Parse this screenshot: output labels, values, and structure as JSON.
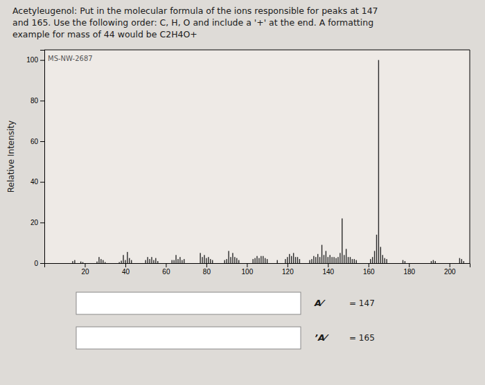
{
  "chart_data": {
    "type": "bar",
    "title": "Acetyleugenol: Put in the molecular formula of the ions responsible for peaks at 147\nand 165. Use the following order: C, H, O and include a '+' at the end. A formatting\nexample for mass of 44 would be C2H4O+",
    "y_label": "Relative Intensity",
    "annotations": [
      "MS-NW-2687"
    ],
    "answer_fields": [
      {
        "symbol": "A⁄",
        "label": "= 147"
      },
      {
        "symbol": "ʼA⁄",
        "label": "= 165"
      }
    ],
    "x": [
      14,
      15,
      18,
      19,
      26,
      27,
      28,
      29,
      30,
      37,
      38,
      39,
      40,
      41,
      42,
      43,
      50,
      51,
      52,
      53,
      54,
      55,
      56,
      63,
      64,
      65,
      66,
      67,
      68,
      69,
      77,
      78,
      79,
      80,
      81,
      82,
      83,
      89,
      90,
      91,
      92,
      93,
      94,
      95,
      96,
      103,
      104,
      105,
      106,
      107,
      108,
      109,
      110,
      115,
      119,
      120,
      121,
      122,
      123,
      124,
      125,
      126,
      131,
      132,
      133,
      134,
      135,
      136,
      137,
      138,
      139,
      140,
      141,
      142,
      143,
      144,
      145,
      146,
      147,
      148,
      149,
      150,
      151,
      152,
      153,
      154,
      161,
      162,
      163,
      164,
      165,
      166,
      167,
      168,
      169,
      177,
      178,
      191,
      192,
      193,
      205,
      206,
      207
    ],
    "values": [
      1.0,
      1.5,
      0.8,
      0.5,
      0.8,
      3.0,
      2.0,
      1.5,
      0.5,
      0.5,
      1.2,
      4.0,
      1.5,
      5.5,
      2.5,
      1.5,
      1.5,
      3.0,
      2.0,
      3.0,
      1.5,
      2.5,
      1.0,
      1.5,
      1.5,
      4.0,
      2.0,
      3.0,
      1.5,
      2.0,
      5.0,
      3.0,
      4.0,
      2.5,
      3.0,
      2.0,
      1.5,
      1.5,
      2.0,
      6.0,
      3.0,
      5.0,
      3.0,
      2.5,
      1.5,
      2.0,
      2.5,
      3.5,
      2.5,
      3.5,
      3.5,
      2.5,
      2.0,
      1.5,
      2.0,
      3.0,
      4.5,
      3.5,
      5.0,
      3.0,
      3.0,
      2.0,
      1.5,
      2.0,
      3.5,
      3.0,
      4.5,
      3.0,
      9.0,
      4.0,
      6.0,
      3.0,
      4.0,
      3.0,
      3.0,
      2.5,
      3.0,
      5.0,
      22.0,
      4.0,
      7.0,
      3.0,
      3.0,
      2.0,
      2.0,
      1.5,
      2.0,
      3.0,
      6.0,
      14.0,
      100.0,
      8.0,
      4.0,
      2.5,
      2.0,
      1.5,
      1.0,
      1.0,
      1.5,
      1.0,
      2.5,
      2.0,
      1.0
    ],
    "color": "#2a2a2a",
    "xlim": [
      0,
      210
    ],
    "ylim": [
      0,
      105
    ],
    "xticks": [
      20,
      40,
      60,
      80,
      100,
      120,
      140,
      160,
      180,
      200
    ],
    "yticks": [
      0,
      20,
      40,
      60,
      80,
      100
    ],
    "grid": false
  }
}
